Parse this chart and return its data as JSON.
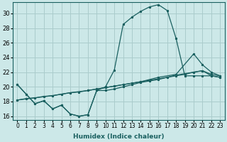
{
  "xlabel": "Humidex (Indice chaleur)",
  "bg_color": "#cce8e8",
  "grid_color": "#aacccc",
  "line_color": "#1a6060",
  "xlim": [
    -0.5,
    23.5
  ],
  "ylim": [
    15.5,
    31.5
  ],
  "xtick_labels": [
    "0",
    "1",
    "2",
    "3",
    "4",
    "5",
    "6",
    "7",
    "8",
    "9",
    "10",
    "11",
    "12",
    "13",
    "14",
    "15",
    "16",
    "17",
    "18",
    "19",
    "20",
    "21",
    "22",
    "23"
  ],
  "xtick_vals": [
    0,
    1,
    2,
    3,
    4,
    5,
    6,
    7,
    8,
    9,
    10,
    11,
    12,
    13,
    14,
    15,
    16,
    17,
    18,
    19,
    20,
    21,
    22,
    23
  ],
  "ytick_vals": [
    16,
    18,
    20,
    22,
    24,
    26,
    28,
    30
  ],
  "curve_zigzag_x": [
    0,
    1,
    2,
    3,
    4,
    5,
    6,
    7,
    8,
    9,
    10,
    11,
    12,
    13,
    14,
    15,
    16,
    17,
    18,
    19,
    20,
    21,
    22,
    23
  ],
  "curve_zigzag_y": [
    20.3,
    19.0,
    17.7,
    18.1,
    17.0,
    17.5,
    16.3,
    16.0,
    16.2,
    19.5,
    19.5,
    19.7,
    20.0,
    20.3,
    20.6,
    20.8,
    21.0,
    21.3,
    21.6,
    21.8,
    22.0,
    22.2,
    21.5,
    21.3
  ],
  "curve_bell_x": [
    0,
    1,
    2,
    3,
    4,
    5,
    6,
    7,
    8,
    9,
    10,
    11,
    12,
    13,
    14,
    15,
    16,
    17,
    18,
    19,
    20,
    21,
    22,
    23
  ],
  "curve_bell_y": [
    20.3,
    19.0,
    17.7,
    18.1,
    17.0,
    17.5,
    16.3,
    16.0,
    16.2,
    19.5,
    20.0,
    22.3,
    28.5,
    29.5,
    30.3,
    30.9,
    31.2,
    30.4,
    26.6,
    21.5,
    21.5,
    21.5,
    21.5,
    21.3
  ],
  "curve_diag1_x": [
    0,
    1,
    2,
    3,
    4,
    5,
    6,
    7,
    8,
    9,
    10,
    11,
    12,
    13,
    14,
    15,
    16,
    17,
    18,
    19,
    20,
    21,
    22,
    23
  ],
  "curve_diag1_y": [
    18.2,
    18.4,
    18.5,
    18.7,
    18.8,
    19.0,
    19.2,
    19.3,
    19.5,
    19.7,
    19.9,
    20.1,
    20.3,
    20.5,
    20.7,
    20.9,
    21.1,
    21.3,
    21.5,
    21.7,
    22.0,
    22.2,
    21.7,
    21.5
  ],
  "curve_diag2_x": [
    0,
    2,
    4,
    6,
    8,
    10,
    12,
    14,
    16,
    18,
    20,
    21,
    22,
    23
  ],
  "curve_diag2_y": [
    18.2,
    18.5,
    18.8,
    19.2,
    19.5,
    19.9,
    20.3,
    20.7,
    21.3,
    21.7,
    24.5,
    23.0,
    22.0,
    21.5
  ]
}
